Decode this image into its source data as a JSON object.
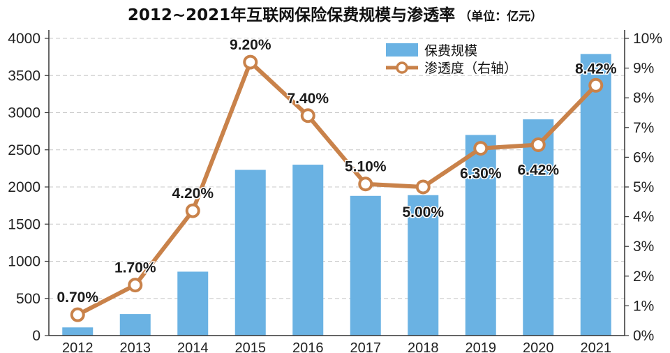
{
  "title": "2012~2021年互联网保险保费规模与渗透率",
  "unit_note": "（单位：亿元）",
  "colors": {
    "bar": "#6ab2e3",
    "line": "#c9824a",
    "grid": "#c8c8c8",
    "axis": "#333333"
  },
  "chart_data": {
    "type": "bar+line",
    "title": "2012~2021年互联网保险保费规模与渗透率",
    "categories": [
      "2012",
      "2013",
      "2014",
      "2015",
      "2016",
      "2017",
      "2018",
      "2019",
      "2020",
      "2021"
    ],
    "series": [
      {
        "name": "保费规模",
        "type": "bar",
        "axis": "left",
        "values": [
          110,
          290,
          860,
          2230,
          2300,
          1880,
          1890,
          2700,
          2910,
          3790
        ]
      },
      {
        "name": "渗透度（右轴）",
        "type": "line",
        "axis": "right",
        "values": [
          0.7,
          1.7,
          4.2,
          9.2,
          7.4,
          5.1,
          5.0,
          6.3,
          6.42,
          8.42
        ],
        "labels": [
          "0.70%",
          "1.70%",
          "4.20%",
          "9.20%",
          "7.40%",
          "5.10%",
          "5.00%",
          "6.30%",
          "6.42%",
          "8.42%"
        ]
      }
    ],
    "y_left": {
      "min": 0,
      "max": 4000,
      "ticks": [
        "0",
        "500",
        "1000",
        "1500",
        "2000",
        "2500",
        "3000",
        "3500",
        "4000"
      ]
    },
    "y_right": {
      "min": 0,
      "max": 10,
      "ticks": [
        "0%",
        "1%",
        "2%",
        "3%",
        "4%",
        "5%",
        "6%",
        "7%",
        "8%",
        "9%",
        "10%"
      ]
    },
    "legend": [
      "保费规模",
      "渗透度（右轴）"
    ],
    "legend_position": "top-right",
    "grid": true
  }
}
